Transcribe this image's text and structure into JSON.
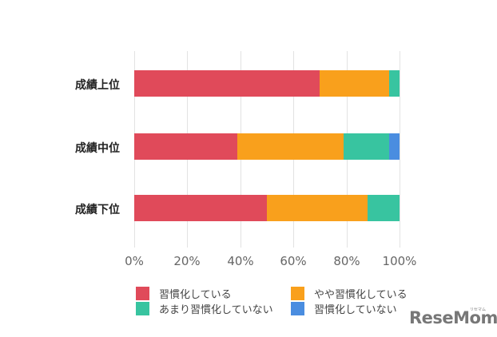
{
  "chart_data": {
    "type": "bar",
    "orientation": "horizontal",
    "stacked": true,
    "normalized": true,
    "title": "",
    "xlabel": "",
    "ylabel": "",
    "xlim": [
      0,
      100
    ],
    "grid": true,
    "legend_position": "bottom",
    "categories": [
      "成績上位",
      "成績中位",
      "成績下位"
    ],
    "x_ticks": [
      "0%",
      "20%",
      "40%",
      "60%",
      "80%",
      "100%"
    ],
    "series": [
      {
        "name": "習慣化している",
        "color": "#e04a5a",
        "values": [
          70,
          39,
          50
        ]
      },
      {
        "name": "やや習慣化している",
        "color": "#f9a01c",
        "values": [
          26,
          40,
          38
        ]
      },
      {
        "name": "あまり習慣化していない",
        "color": "#38c4a0",
        "values": [
          4,
          17,
          12
        ]
      },
      {
        "name": "習慣化していない",
        "color": "#4a8de0",
        "values": [
          0,
          4,
          0
        ]
      }
    ]
  },
  "logo": {
    "text": "ReseMom",
    "sub": "リセマム"
  }
}
